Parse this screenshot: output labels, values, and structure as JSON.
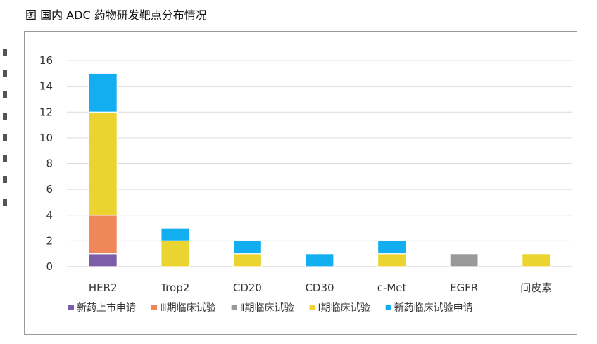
{
  "figure": {
    "title": "图   国内 ADC 药物研发靶点分布情况"
  },
  "chart_data": {
    "type": "bar",
    "stacked": true,
    "title": "",
    "xlabel": "",
    "ylabel": "",
    "ylim": [
      0,
      16
    ],
    "yticks": [
      0,
      2,
      4,
      6,
      8,
      10,
      12,
      14,
      16
    ],
    "grid": true,
    "legend_position": "bottom",
    "categories": [
      "HER2",
      "Trop2",
      "CD20",
      "CD30",
      "c-Met",
      "EGFR",
      "间皮素"
    ],
    "series": [
      {
        "name": "新药上市申请",
        "color": "#7b5ea7",
        "values": [
          1,
          0,
          0,
          0,
          0,
          0,
          0
        ]
      },
      {
        "name": "Ⅲ期临床试验",
        "color": "#f0875a",
        "values": [
          3,
          0,
          0,
          0,
          0,
          0,
          0
        ]
      },
      {
        "name": "Ⅱ期临床试验",
        "color": "#999999",
        "values": [
          0,
          0,
          0,
          0,
          0,
          1,
          0
        ]
      },
      {
        "name": "Ⅰ期临床试验",
        "color": "#ecd430",
        "values": [
          8,
          2,
          1,
          0,
          1,
          0,
          1
        ]
      },
      {
        "name": "新药临床试验申请",
        "color": "#13aef0",
        "values": [
          3,
          1,
          1,
          1,
          1,
          0,
          0
        ]
      }
    ]
  }
}
